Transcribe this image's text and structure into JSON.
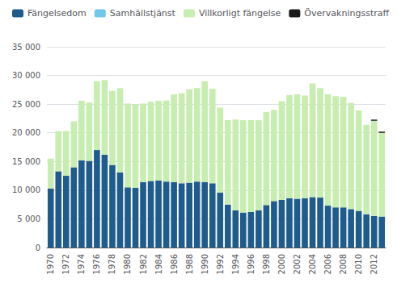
{
  "chart_data": {
    "type": "bar",
    "stacked": true,
    "grid": true,
    "legend": "upper left",
    "categories": [
      "1970",
      null,
      "1972",
      null,
      "1974",
      null,
      "1976",
      null,
      "1978",
      null,
      "1980",
      null,
      "1982",
      null,
      "1984",
      null,
      "1986",
      null,
      "1988",
      null,
      "1990",
      null,
      "1992",
      null,
      "1994",
      null,
      "1996",
      null,
      "1998",
      null,
      "2000",
      null,
      "2002",
      null,
      "2004",
      null,
      "2006",
      null,
      "2008",
      null,
      "2010",
      null,
      "2012",
      null
    ],
    "series": [
      {
        "name": "Fängelsedom",
        "color": "#1F5C8B",
        "values": [
          10300,
          13300,
          12500,
          14000,
          15200,
          15100,
          17000,
          16200,
          14400,
          13100,
          10500,
          10400,
          11400,
          11600,
          11700,
          11500,
          11400,
          11200,
          11300,
          11500,
          11400,
          11200,
          9600,
          7500,
          6500,
          6100,
          6200,
          6500,
          7400,
          8100,
          8300,
          8600,
          8500,
          8600,
          8800,
          8700,
          7300,
          7000,
          7000,
          6700,
          6400,
          5800,
          5500,
          5400
        ]
      },
      {
        "name": "Samhällstjänst",
        "color": "#70C8E8",
        "values": [
          0,
          0,
          0,
          0,
          0,
          0,
          0,
          0,
          0,
          0,
          0,
          0,
          0,
          0,
          0,
          0,
          0,
          0,
          0,
          0,
          0,
          0,
          0,
          0,
          0,
          0,
          0,
          0,
          0,
          0,
          0,
          0,
          0,
          0,
          0,
          0,
          0,
          0,
          0,
          0,
          0,
          0,
          0,
          0
        ]
      },
      {
        "name": "Villkorligt fängelse",
        "color": "#C8EDB0",
        "values": [
          5200,
          7000,
          7800,
          8000,
          10400,
          10200,
          12000,
          13000,
          12900,
          14700,
          14600,
          14600,
          13700,
          13800,
          13900,
          14100,
          15300,
          15700,
          16300,
          16300,
          17600,
          16500,
          14800,
          14700,
          15800,
          16100,
          16000,
          15700,
          16200,
          15900,
          17200,
          18000,
          18200,
          17900,
          19800,
          19100,
          19400,
          19400,
          19300,
          18500,
          17500,
          15600,
          16600,
          14600
        ]
      },
      {
        "name": "Övervakningsstraff",
        "color": "#1A1A1A",
        "values": [
          0,
          0,
          0,
          0,
          0,
          0,
          0,
          0,
          0,
          0,
          0,
          0,
          0,
          0,
          0,
          0,
          0,
          0,
          0,
          0,
          0,
          0,
          0,
          0,
          0,
          0,
          0,
          0,
          0,
          0,
          0,
          0,
          0,
          0,
          0,
          0,
          0,
          0,
          0,
          0,
          0,
          0,
          200,
          200
        ]
      }
    ],
    "ylim": [
      0,
      35000
    ],
    "yticks": [
      0,
      {
        "value": 5000,
        "label": "5 000"
      },
      {
        "value": 10000,
        "label": "10 000"
      },
      {
        "value": 15000,
        "label": "15 000"
      },
      {
        "value": 20000,
        "label": "20 000"
      },
      {
        "value": 25000,
        "label": "25 000"
      },
      {
        "value": 30000,
        "label": "30 000"
      },
      {
        "value": 35000,
        "label": "35 000"
      }
    ]
  }
}
